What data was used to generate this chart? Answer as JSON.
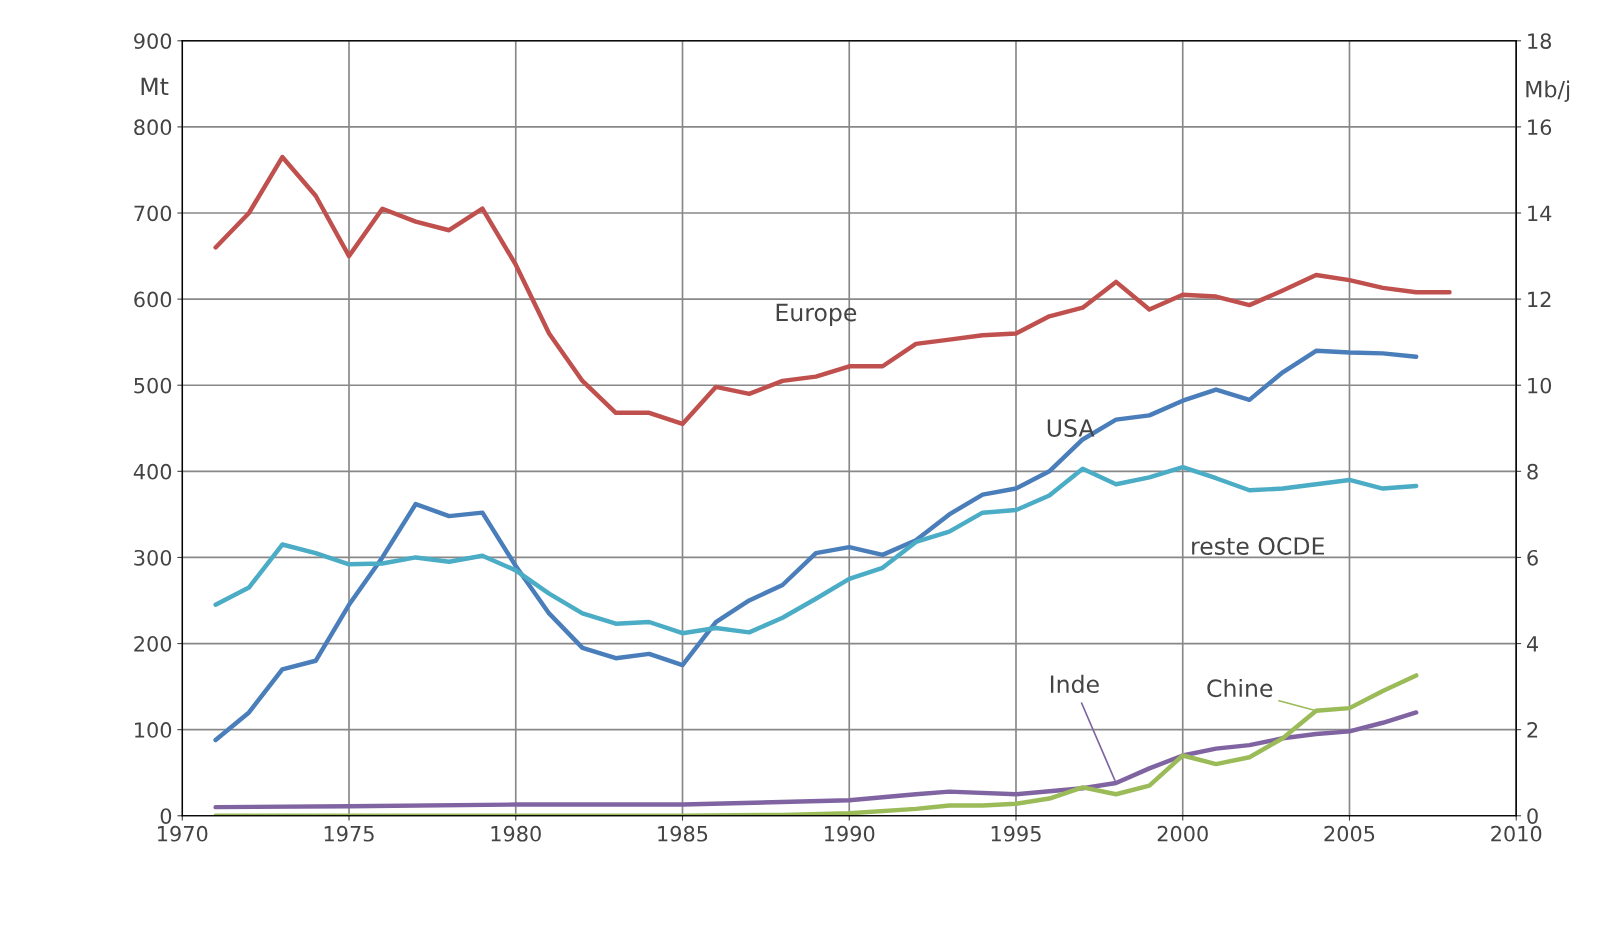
{
  "chart_data": {
    "type": "line",
    "ylabel": "Mt",
    "y2label": "Mb/j",
    "xlim": [
      1970,
      2010
    ],
    "xticks": [
      1970,
      1975,
      1980,
      1985,
      1990,
      1995,
      2000,
      2005,
      2010
    ],
    "ylim": [
      0,
      900
    ],
    "yticks": [
      0,
      100,
      200,
      300,
      400,
      500,
      600,
      700,
      800,
      900
    ],
    "y2lim": [
      0,
      18
    ],
    "y2ticks": [
      0,
      2,
      4,
      6,
      8,
      10,
      12,
      14,
      16,
      18
    ],
    "grid": true,
    "legend": false,
    "marker": "none",
    "line_style": "solid",
    "series": [
      {
        "name": "Europe",
        "color": "#c0504d",
        "x": [
          1971,
          1972,
          1973,
          1974,
          1975,
          1976,
          1977,
          1978,
          1979,
          1980,
          1981,
          1982,
          1983,
          1984,
          1985,
          1986,
          1987,
          1988,
          1989,
          1990,
          1991,
          1992,
          1993,
          1994,
          1995,
          1996,
          1997,
          1998,
          1999,
          2000,
          2001,
          2002,
          2003,
          2004,
          2005,
          2006,
          2007,
          2008
        ],
        "values": [
          660,
          700,
          765,
          720,
          650,
          705,
          690,
          680,
          705,
          640,
          560,
          505,
          468,
          468,
          455,
          498,
          490,
          505,
          510,
          522,
          522,
          548,
          553,
          558,
          560,
          580,
          590,
          620,
          588,
          605,
          603,
          593,
          610,
          628,
          622,
          613,
          608,
          608
        ]
      },
      {
        "name": "USA",
        "color": "#4a7ebb",
        "x": [
          1971,
          1972,
          1973,
          1974,
          1975,
          1976,
          1977,
          1978,
          1979,
          1980,
          1981,
          1982,
          1983,
          1984,
          1985,
          1986,
          1987,
          1988,
          1989,
          1990,
          1991,
          1992,
          1993,
          1994,
          1995,
          1996,
          1997,
          1998,
          1999,
          2000,
          2001,
          2002,
          2003,
          2004,
          2005,
          2006,
          2007
        ],
        "values": [
          88,
          120,
          170,
          180,
          245,
          300,
          362,
          348,
          352,
          290,
          235,
          195,
          183,
          188,
          175,
          225,
          250,
          268,
          305,
          312,
          303,
          320,
          350,
          373,
          380,
          400,
          437,
          460,
          465,
          482,
          495,
          483,
          515,
          540,
          538,
          537,
          533
        ]
      },
      {
        "name": "reste OCDE",
        "color": "#4bacc6",
        "x": [
          1971,
          1972,
          1973,
          1974,
          1975,
          1976,
          1977,
          1978,
          1979,
          1980,
          1981,
          1982,
          1983,
          1984,
          1985,
          1986,
          1987,
          1988,
          1989,
          1990,
          1991,
          1992,
          1993,
          1994,
          1995,
          1996,
          1997,
          1998,
          1999,
          2000,
          2001,
          2002,
          2003,
          2004,
          2005,
          2006,
          2007
        ],
        "values": [
          245,
          265,
          315,
          305,
          292,
          293,
          300,
          295,
          302,
          285,
          258,
          235,
          223,
          225,
          212,
          218,
          213,
          230,
          252,
          275,
          288,
          318,
          330,
          352,
          355,
          372,
          403,
          385,
          393,
          405,
          392,
          378,
          380,
          385,
          390,
          380,
          383
        ]
      },
      {
        "name": "Inde",
        "color": "#8064a2",
        "x": [
          1971,
          1975,
          1980,
          1985,
          1990,
          1992,
          1993,
          1995,
          1997,
          1998,
          1999,
          2000,
          2001,
          2002,
          2003,
          2004,
          2005,
          2006,
          2007
        ],
        "values": [
          10,
          11,
          13,
          13,
          18,
          25,
          28,
          25,
          32,
          38,
          55,
          70,
          78,
          82,
          90,
          95,
          98,
          108,
          120
        ]
      },
      {
        "name": "Chine",
        "color": "#9bbb59",
        "x": [
          1971,
          1975,
          1980,
          1985,
          1988,
          1990,
          1992,
          1993,
          1994,
          1995,
          1996,
          1997,
          1998,
          1999,
          2000,
          2001,
          2002,
          2003,
          2004,
          2005,
          2006,
          2007
        ],
        "values": [
          0,
          0,
          0,
          0,
          1,
          3,
          8,
          12,
          12,
          14,
          20,
          33,
          25,
          35,
          70,
          60,
          68,
          90,
          122,
          125,
          145,
          163
        ]
      }
    ]
  }
}
